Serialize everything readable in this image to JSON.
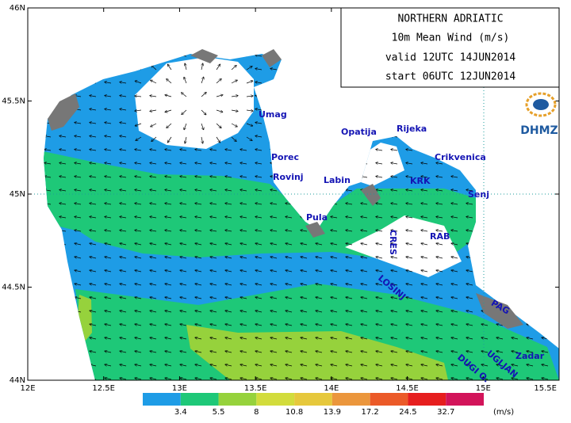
{
  "title_box": {
    "lines": [
      "NORTHERN ADRIATIC",
      "10m Mean Wind (m/s)",
      "valid 12UTC 14JUN2014",
      "start 06UTC 12JUN2014"
    ]
  },
  "logo": "DHMZ",
  "axes": {
    "lat_labels": [
      "46N",
      "45.5N",
      "45N",
      "44.5N",
      "44N"
    ],
    "lon_labels": [
      "12E",
      "12.5E",
      "13E",
      "13.5E",
      "14E",
      "14.5E",
      "15E",
      "15.5E"
    ]
  },
  "places": [
    "Umag",
    "Porec",
    "Rovinj",
    "Pula",
    "Labin",
    "Opatija",
    "Rijeka",
    "Crikvenica",
    "KRK",
    "Senj",
    "CRES",
    "RAB",
    "LOSINJ",
    "PAG",
    "UGLJAN",
    "DUGI O.",
    "Zadar"
  ],
  "legend": {
    "thresholds": [
      3.4,
      5.5,
      8,
      10.8,
      13.9,
      17.2,
      24.5,
      32.7
    ],
    "unit": "(m/s)",
    "colors": [
      "#1e9ce6",
      "#1ec878",
      "#96d23c",
      "#d2dc3c",
      "#e6c83c",
      "#eb963c",
      "#eb5a28",
      "#e61e1e",
      "#d2145a"
    ]
  }
}
